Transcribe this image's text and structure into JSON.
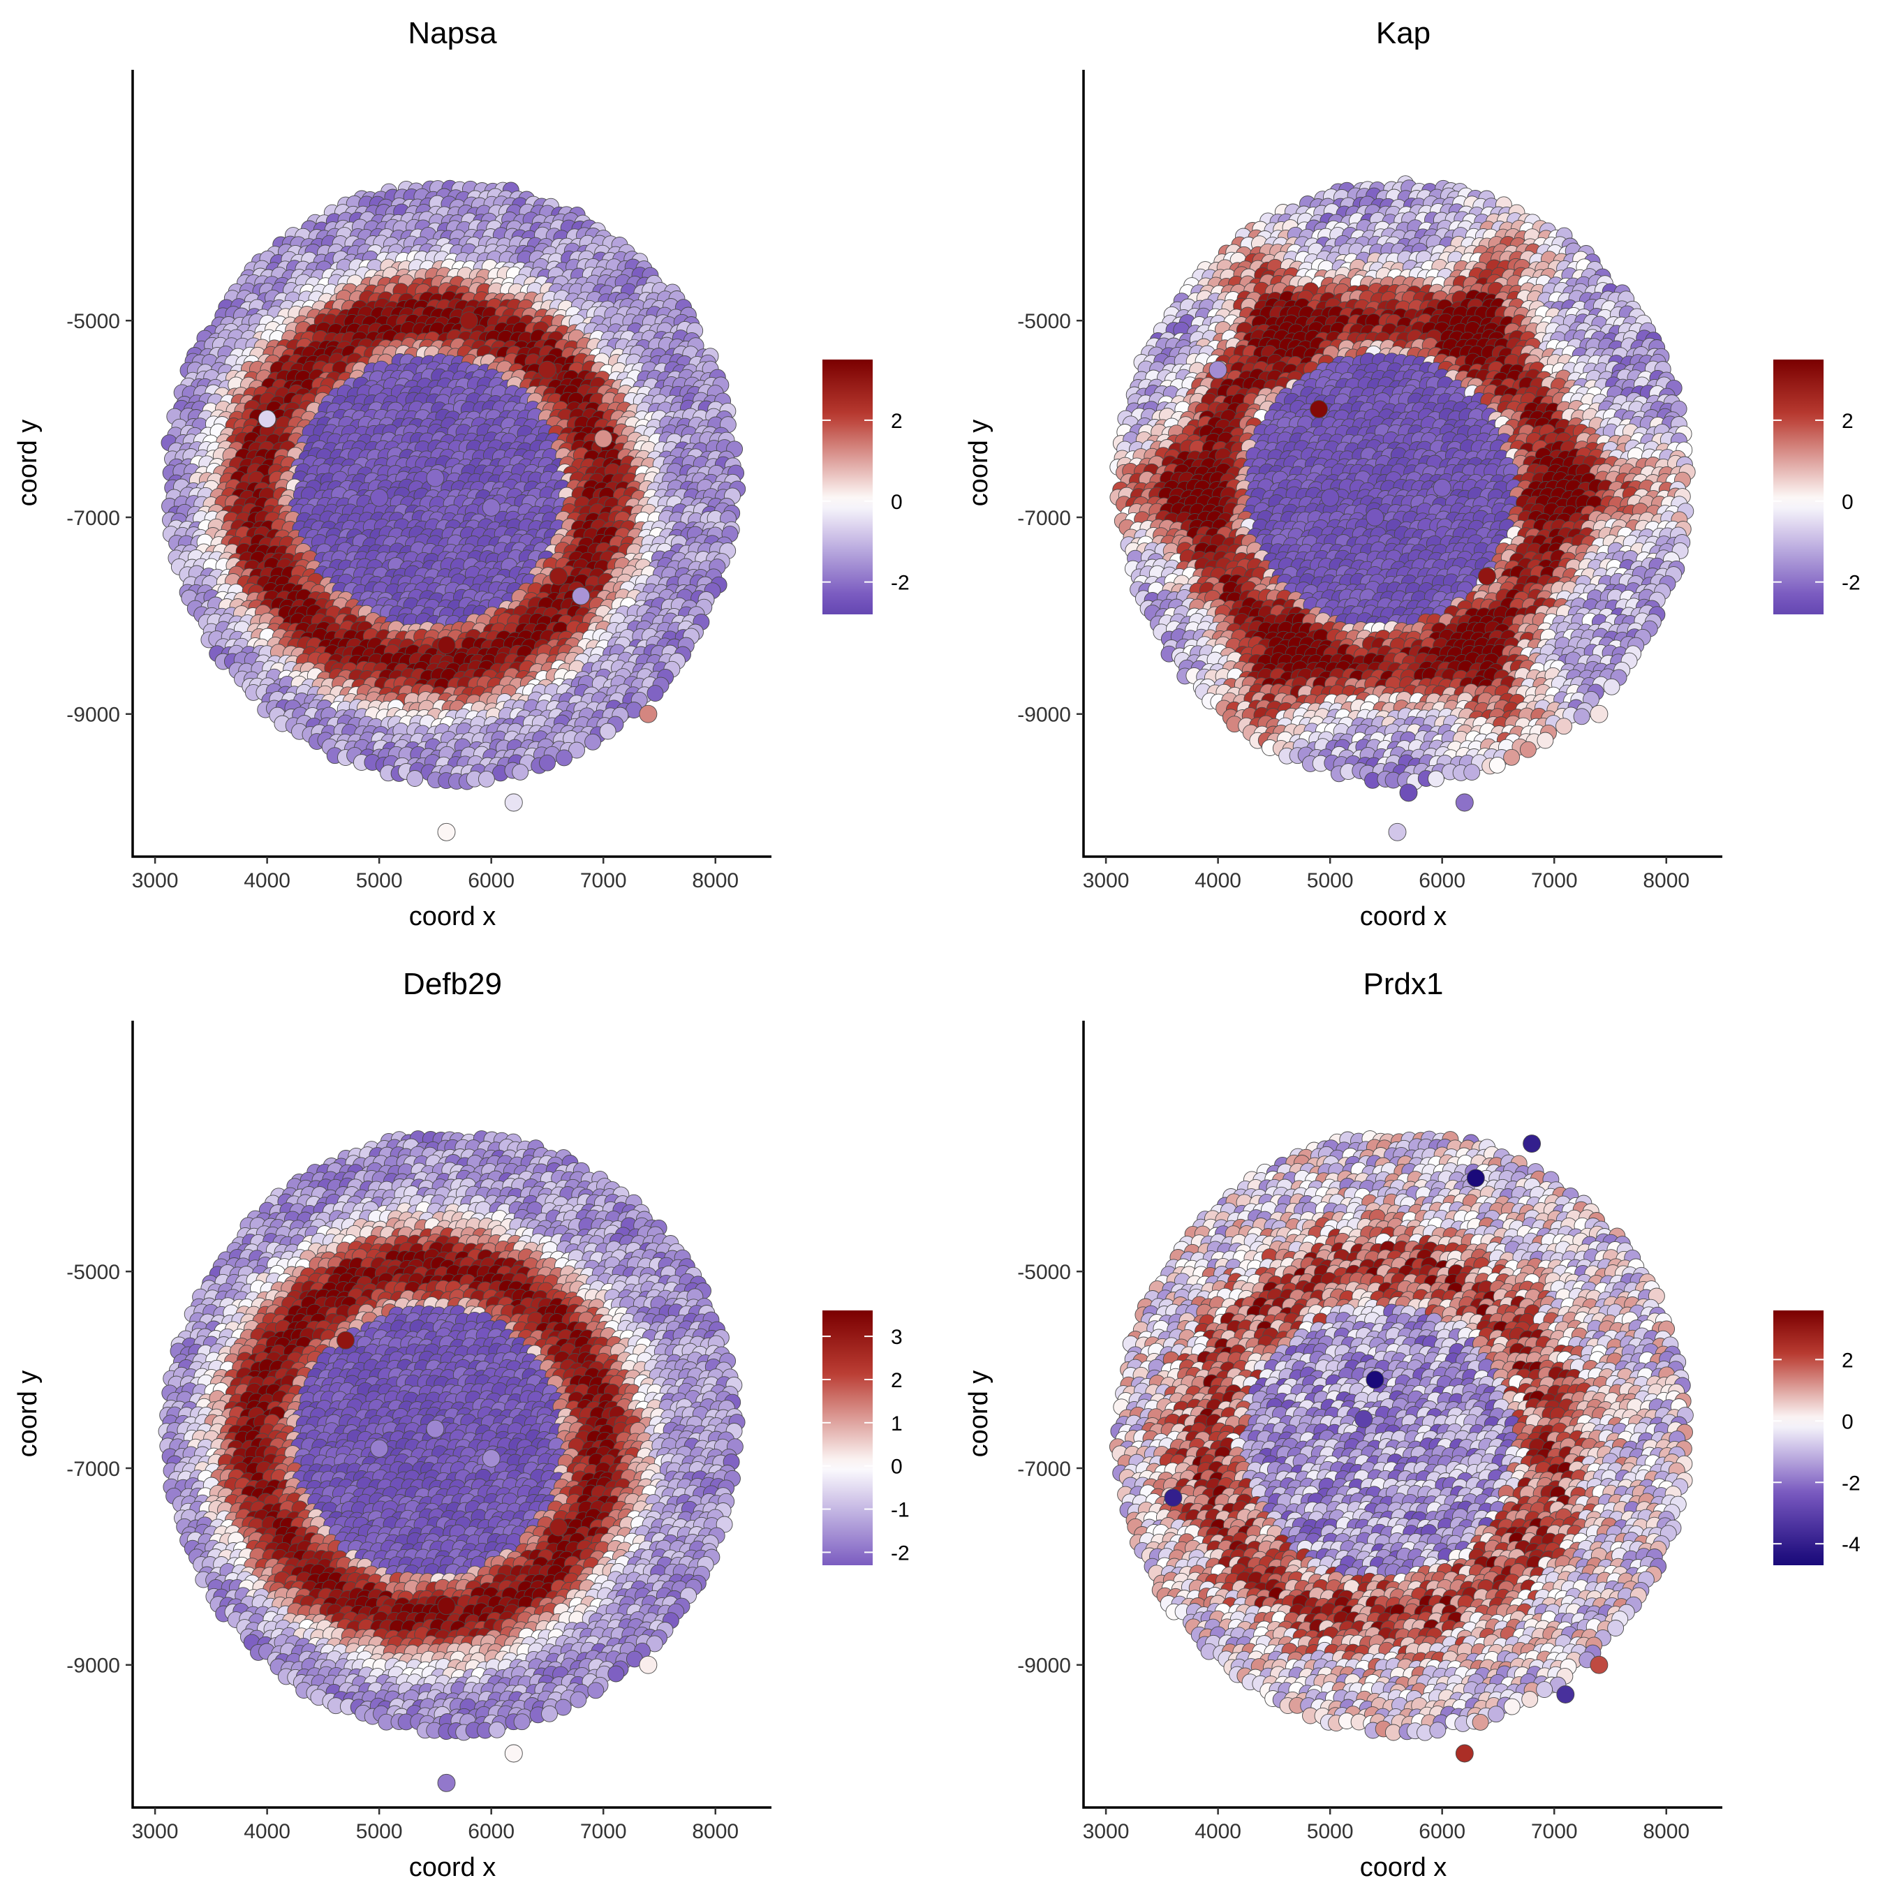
{
  "figure": {
    "xlabel": "coord x",
    "ylabel": "coord y",
    "colors": {
      "low": "#1a0a7a",
      "mid": "#ffffff",
      "high": "#7a0000"
    }
  },
  "chart_data": [
    {
      "type": "scatter",
      "title": "Napsa",
      "xlabel": "coord x",
      "ylabel": "coord y",
      "xlim": [
        2800,
        8500
      ],
      "ylim": [
        -10450,
        -2450
      ],
      "x_ticks": [
        3000,
        4000,
        5000,
        6000,
        7000,
        8000
      ],
      "y_ticks": [
        -5000,
        -7000,
        -9000
      ],
      "legend": {
        "placement": "right",
        "min": -2.8,
        "max": 3.5,
        "ticks": [
          2,
          0,
          -2
        ]
      },
      "pattern": "ring",
      "x": [
        5000,
        5500,
        6000,
        6500,
        7000,
        4000,
        5600,
        5800,
        6600,
        6800,
        6200,
        5600,
        7400
      ],
      "y": [
        -6800,
        -6600,
        -6900,
        -5500,
        -6200,
        -6000,
        -8300,
        -5000,
        -7600,
        -7800,
        -9900,
        -10200,
        -9000
      ],
      "values": [
        -2.3,
        -2.1,
        -2.0,
        2.8,
        1.2,
        -0.6,
        3.2,
        2.9,
        2.9,
        -1.5,
        -0.4,
        0.1,
        1.3
      ]
    },
    {
      "type": "scatter",
      "title": "Kap",
      "xlabel": "coord x",
      "ylabel": "coord y",
      "xlim": [
        2800,
        8500
      ],
      "ylim": [
        -10450,
        -2450
      ],
      "x_ticks": [
        3000,
        4000,
        5000,
        6000,
        7000,
        8000
      ],
      "y_ticks": [
        -5000,
        -7000,
        -9000
      ],
      "legend": {
        "placement": "right",
        "min": -2.8,
        "max": 3.5,
        "ticks": [
          2,
          0,
          -2
        ]
      },
      "pattern": "ring-spokes",
      "x": [
        5000,
        5400,
        6000,
        4900,
        6400,
        4000,
        5700,
        6200,
        5600,
        7400
      ],
      "y": [
        -6800,
        -7000,
        -6700,
        -5900,
        -7600,
        -5500,
        -9800,
        -9900,
        -10200,
        -9000
      ],
      "values": [
        -2.5,
        -2.4,
        -2.2,
        3.3,
        3.0,
        -1.6,
        -2.6,
        -2.0,
        -0.8,
        0.3
      ]
    },
    {
      "type": "scatter",
      "title": "Defb29",
      "xlabel": "coord x",
      "ylabel": "coord y",
      "xlim": [
        2800,
        8500
      ],
      "ylim": [
        -10450,
        -2450
      ],
      "x_ticks": [
        3000,
        4000,
        5000,
        6000,
        7000,
        8000
      ],
      "y_ticks": [
        -5000,
        -7000,
        -9000
      ],
      "legend": {
        "placement": "right",
        "min": -2.3,
        "max": 3.6,
        "ticks": [
          3,
          2,
          1,
          0,
          -1,
          -2
        ]
      },
      "pattern": "ring",
      "x": [
        5000,
        5500,
        6000,
        4700,
        5600,
        6600,
        5600,
        6200,
        7400
      ],
      "y": [
        -6800,
        -6600,
        -6900,
        -5700,
        -8400,
        -7600,
        -10200,
        -9900,
        -9000
      ],
      "values": [
        -1.8,
        -1.7,
        -1.6,
        3.1,
        3.4,
        2.9,
        -1.9,
        0.1,
        0.2
      ]
    },
    {
      "type": "scatter",
      "title": "Prdx1",
      "xlabel": "coord x",
      "ylabel": "coord y",
      "xlim": [
        2800,
        8500
      ],
      "ylim": [
        -10450,
        -2450
      ],
      "x_ticks": [
        3000,
        4000,
        5000,
        6000,
        7000,
        8000
      ],
      "y_ticks": [
        -5000,
        -7000,
        -9000
      ],
      "legend": {
        "placement": "right",
        "min": -4.7,
        "max": 3.6,
        "ticks": [
          2,
          0,
          -2,
          -4
        ]
      },
      "pattern": "noisy-ring",
      "x": [
        5400,
        6800,
        6300,
        3600,
        7100,
        6200,
        7400,
        5300
      ],
      "y": [
        -6100,
        -3700,
        -4050,
        -7300,
        -9300,
        -9900,
        -9000,
        -6500
      ],
      "values": [
        -4.6,
        -4.0,
        -4.7,
        -4.0,
        -3.5,
        2.5,
        2.0,
        -3.0
      ]
    }
  ]
}
